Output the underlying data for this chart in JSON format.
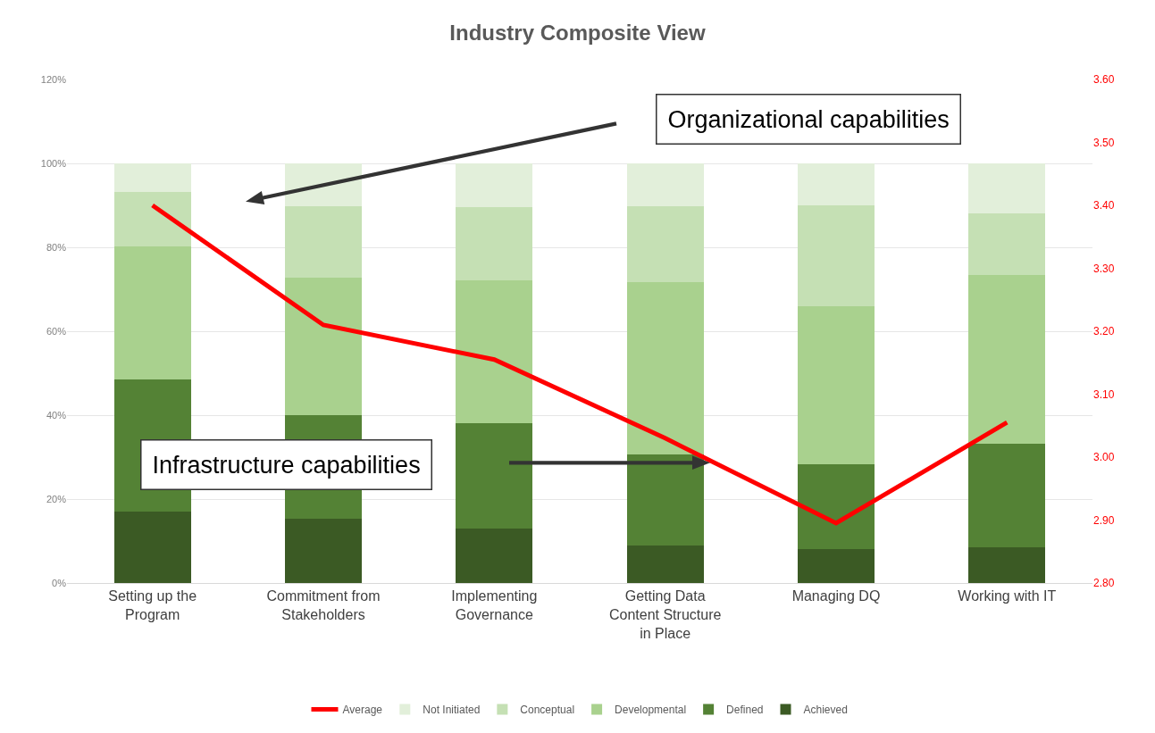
{
  "chart_data": {
    "type": "bar",
    "title": "Industry Composite View",
    "stacked": true,
    "categories": [
      "Setting up the Program",
      "Commitment from Stakeholders",
      "Implementing Governance",
      "Getting Data Content Structure in Place",
      "Managing DQ",
      "Working with IT"
    ],
    "series": [
      {
        "name": "Achieved",
        "color": "#3b5a24",
        "values": [
          17.1,
          15.3,
          12.9,
          8.9,
          8.1,
          8.5
        ]
      },
      {
        "name": "Defined",
        "color": "#548235",
        "values": [
          31.4,
          24.8,
          25.1,
          21.7,
          20.1,
          24.6
        ]
      },
      {
        "name": "Developmental",
        "color": "#a9d18e",
        "values": [
          31.7,
          32.6,
          34.2,
          41.1,
          37.7,
          40.4
        ]
      },
      {
        "name": "Conceptual",
        "color": "#c5e0b4",
        "values": [
          13.0,
          17.0,
          17.3,
          18.0,
          24.1,
          14.5
        ]
      },
      {
        "name": "Not Initiated",
        "color": "#e2efda",
        "values": [
          6.8,
          10.3,
          10.5,
          10.3,
          10.0,
          12.0
        ]
      },
      {
        "name": "Average",
        "type": "line",
        "axis": "y2",
        "color": "#ff0000",
        "values": [
          3.4,
          3.21,
          3.155,
          3.03,
          2.895,
          3.055
        ]
      }
    ],
    "ylim": [
      0,
      120
    ],
    "yticks": [
      {
        "value": 0,
        "label": "0%"
      },
      {
        "value": 20,
        "label": "20%"
      },
      {
        "value": 40,
        "label": "40%"
      },
      {
        "value": 60,
        "label": "60%"
      },
      {
        "value": 80,
        "label": "80%"
      },
      {
        "value": 100,
        "label": "100%"
      },
      {
        "value": 120,
        "label": "120%"
      }
    ],
    "y2lim": [
      2.8,
      3.6
    ],
    "y2ticks": [
      {
        "value": 2.8,
        "label": "2.80"
      },
      {
        "value": 2.9,
        "label": "2.90"
      },
      {
        "value": 3.0,
        "label": "3.00"
      },
      {
        "value": 3.1,
        "label": "3.10"
      },
      {
        "value": 3.2,
        "label": "3.20"
      },
      {
        "value": 3.3,
        "label": "3.30"
      },
      {
        "value": 3.4,
        "label": "3.40"
      },
      {
        "value": 3.5,
        "label": "3.50"
      },
      {
        "value": 3.6,
        "label": "3.60"
      }
    ],
    "grid": "y",
    "legend": "bottom",
    "marker": "none",
    "line_style": "solid",
    "annotations": [
      "Organizational capabilities",
      "Infrastructure capabilities"
    ]
  }
}
